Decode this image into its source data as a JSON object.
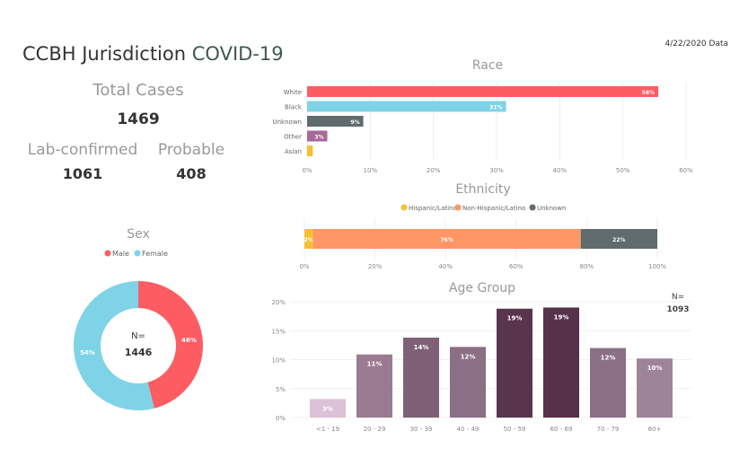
{
  "header": {
    "title": "CCBH Jurisdiction",
    "subtitle": "COVID-19",
    "date": "4/22/2020 Data"
  },
  "kpis": {
    "total_label": "Total Cases",
    "total": "1469",
    "lab_label": "Lab-confirmed",
    "lab": "1061",
    "probable_label": "Probable",
    "probable": "408"
  },
  "colors": {
    "male": "#fd5c63",
    "female": "#7fd3e7",
    "title_accent": "#3d5a4c"
  },
  "chart_data": [
    {
      "type": "bar",
      "orientation": "horizontal",
      "title": "Race",
      "categories": [
        "White",
        "Black",
        "Unknown",
        "Other",
        "Asian"
      ],
      "values": [
        55.6,
        31.5,
        8.9,
        3.2,
        0.9
      ],
      "data_labels": [
        "56%",
        "31%",
        "9%",
        "3%",
        ""
      ],
      "colors": [
        "#fd5c63",
        "#7fd3e7",
        "#5f6b6d",
        "#a66999",
        "#f5c033"
      ],
      "xlim": [
        0,
        60
      ],
      "xticks": [
        "0%",
        "10%",
        "20%",
        "30%",
        "40%",
        "50%",
        "60%"
      ],
      "grid": true
    },
    {
      "type": "bar",
      "orientation": "horizontal",
      "stacked": true,
      "title": "Ethnicity",
      "series": [
        {
          "name": "Hispanic/Latino",
          "value": 2.4,
          "label": "2%",
          "color": "#f5c033"
        },
        {
          "name": "Non-Hispanic/Latino",
          "value": 75.9,
          "label": "76%",
          "color": "#fe9666"
        },
        {
          "name": "Unknown",
          "value": 21.7,
          "label": "22%",
          "color": "#5f6b6d"
        }
      ],
      "xlim": [
        0,
        100
      ],
      "xticks": [
        "0%",
        "20%",
        "40%",
        "60%",
        "80%",
        "100%"
      ],
      "legend": "top",
      "grid": true
    },
    {
      "type": "pie",
      "donut": true,
      "title": "Sex",
      "series": [
        {
          "name": "Male",
          "value": 46,
          "label": "46%",
          "color": "#fd5c63"
        },
        {
          "name": "Female",
          "value": 54,
          "label": "54%",
          "color": "#7fd3e7"
        }
      ],
      "center_label": "N=",
      "center_value": "1446",
      "legend": "top"
    },
    {
      "type": "bar",
      "title": "Age Group",
      "categories": [
        "<1 - 19",
        "20 - 29",
        "30 - 39",
        "40 - 49",
        "50 - 59",
        "60 - 69",
        "70 - 79",
        "80+"
      ],
      "values": [
        3.2,
        10.9,
        13.8,
        12.2,
        18.8,
        19.0,
        12.0,
        10.2
      ],
      "data_labels": [
        "3%",
        "11%",
        "14%",
        "12%",
        "19%",
        "19%",
        "12%",
        "10%"
      ],
      "colors": [
        "#dcc2d6",
        "#9b7b91",
        "#7f6177",
        "#8b6f85",
        "#59354d",
        "#55314a",
        "#8b6f85",
        "#9e8498"
      ],
      "ylim": [
        0,
        20
      ],
      "yticks": [
        "0%",
        "5%",
        "10%",
        "15%",
        "20%"
      ],
      "grid": true,
      "note_label": "N=",
      "note_value": "1093"
    }
  ]
}
